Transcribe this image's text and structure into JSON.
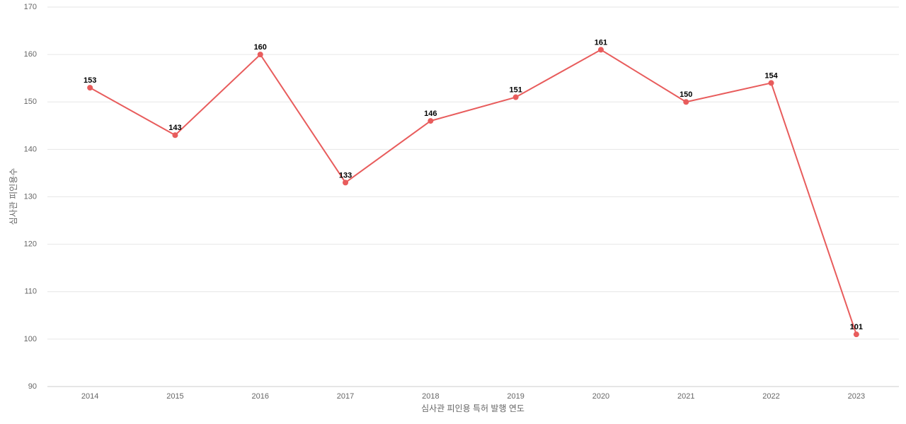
{
  "chart_data": {
    "type": "line",
    "x_label": "심사관 피인용 특허 발행 연도",
    "y_label": "심사관 피인용수",
    "categories": [
      "2014",
      "2015",
      "2016",
      "2017",
      "2018",
      "2019",
      "2020",
      "2021",
      "2022",
      "2023"
    ],
    "values": [
      153,
      143,
      160,
      133,
      146,
      151,
      161,
      150,
      154,
      101
    ],
    "color": "#e85c5c",
    "ylim": [
      90,
      170
    ],
    "yticks": [
      90,
      100,
      110,
      120,
      130,
      140,
      150,
      160,
      170
    ],
    "grid": true
  }
}
